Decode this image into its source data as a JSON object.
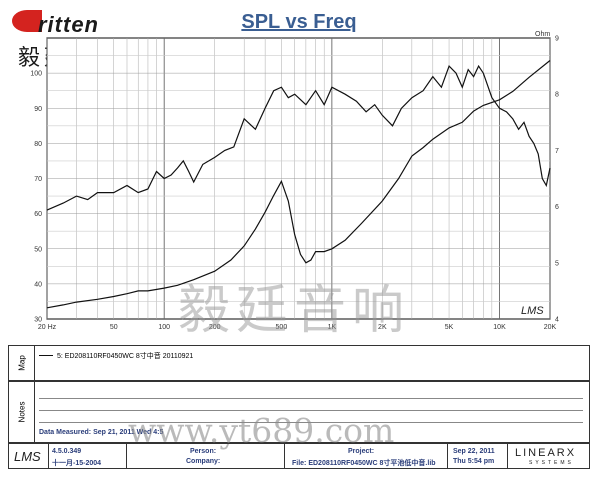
{
  "brand": {
    "name": "ritten",
    "cn": "毅廷音响"
  },
  "chart_data": {
    "type": "line",
    "title": "SPL vs Freq",
    "xlabel": "",
    "ylabel": "",
    "x_scale": "log",
    "xlim": [
      20,
      20000
    ],
    "ylim": [
      30,
      110
    ],
    "y2lim": [
      4,
      9
    ],
    "y2_unit": "Ohm",
    "x_ticks": [
      20,
      50,
      100,
      200,
      500,
      1000,
      2000,
      5000,
      10000,
      20000
    ],
    "x_tick_labels": [
      "20 Hz",
      "50",
      "100",
      "200",
      "500",
      "1K",
      "2K",
      "5K",
      "10K",
      "20K"
    ],
    "y_ticks": [
      30,
      40,
      50,
      60,
      70,
      80,
      90,
      100
    ],
    "y2_ticks": [
      4,
      5,
      6,
      7,
      8,
      9
    ],
    "grid": true,
    "annotations": [
      "LMS"
    ],
    "series": [
      {
        "axis": "left",
        "x": [
          20,
          25,
          30,
          35,
          40,
          50,
          60,
          70,
          80,
          90,
          100,
          110,
          120,
          130,
          140,
          150,
          170,
          200,
          230,
          260,
          300,
          350,
          400,
          450,
          500,
          550,
          600,
          700,
          800,
          900,
          1000,
          1200,
          1400,
          1600,
          1800,
          2000,
          2300,
          2600,
          3000,
          3500,
          4000,
          4500,
          5000,
          5500,
          6000,
          6500,
          7000,
          7500,
          8000,
          9000,
          10000,
          11000,
          12000,
          13000,
          14000,
          15000,
          16000,
          17000,
          18000,
          19000,
          20000
        ],
        "values": [
          61,
          63,
          65,
          64,
          66,
          66,
          68,
          66,
          67,
          72,
          70,
          71,
          73,
          75,
          72,
          69,
          74,
          76,
          78,
          79,
          87,
          84,
          90,
          95,
          96,
          93,
          94,
          91,
          95,
          91,
          96,
          94,
          92,
          89,
          91,
          88,
          85,
          90,
          93,
          95,
          99,
          96,
          102,
          100,
          96,
          101,
          99,
          102,
          100,
          93,
          90,
          89,
          87,
          84,
          86,
          82,
          80,
          77,
          70,
          68,
          73
        ]
      },
      {
        "axis": "right",
        "x": [
          20,
          25,
          30,
          40,
          50,
          60,
          70,
          80,
          100,
          120,
          150,
          200,
          250,
          300,
          350,
          400,
          450,
          500,
          550,
          600,
          650,
          700,
          750,
          800,
          900,
          1000,
          1200,
          1500,
          2000,
          2500,
          3000,
          3500,
          4000,
          5000,
          6000,
          7000,
          8000,
          10000,
          12000,
          15000,
          20000
        ],
        "values": [
          4.2,
          4.25,
          4.3,
          4.35,
          4.4,
          4.45,
          4.5,
          4.5,
          4.55,
          4.6,
          4.7,
          4.85,
          5.05,
          5.3,
          5.6,
          5.9,
          6.2,
          6.45,
          6.1,
          5.5,
          5.15,
          5.0,
          5.05,
          5.2,
          5.2,
          5.25,
          5.4,
          5.7,
          6.1,
          6.5,
          6.9,
          7.05,
          7.2,
          7.4,
          7.5,
          7.7,
          7.8,
          7.9,
          8.05,
          8.3,
          8.6
        ]
      }
    ]
  },
  "legend": {
    "entry": "5: ED208110RF0450WC 8寸中音 20110921",
    "side_label": "Map"
  },
  "notes": {
    "side_label": "Notes",
    "date_measured": "Data Measured: Sep 21, 2011  Wed  4:5"
  },
  "footer": {
    "version": "4.5.0.349",
    "version_date": "十一月-15-2004",
    "person_label": "Person:",
    "company_label": "Company:",
    "project_label": "Project:",
    "file_label": "File: ED208110RF0450WC 8寸平池低中音.lib",
    "date": "Sep 22, 2011",
    "day_time": "Thu   5:54 pm",
    "linearx": "LINEARX",
    "linearx_sub": "SYSTEMS"
  },
  "watermarks": {
    "center_cn": "毅廷音响",
    "url": "www.yt689.com"
  }
}
